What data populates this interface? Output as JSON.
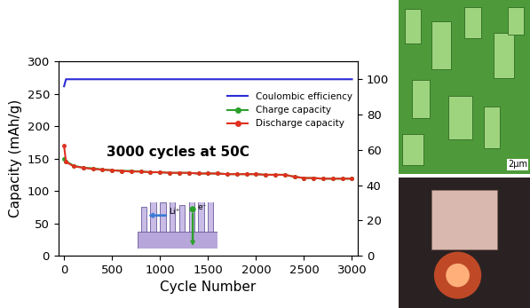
{
  "chart_data": {
    "type": "line",
    "x_label": "Cycle Number",
    "y_label": "Capacity (mAh/g)",
    "x": [
      0,
      20,
      100,
      200,
      300,
      400,
      500,
      600,
      700,
      800,
      900,
      1000,
      1100,
      1200,
      1300,
      1400,
      1500,
      1600,
      1700,
      1800,
      1900,
      2000,
      2100,
      2200,
      2300,
      2400,
      2500,
      2600,
      2700,
      2800,
      2900,
      3000
    ],
    "series": [
      {
        "name": "Coulombic efficiency",
        "color": "#2b2bd6",
        "axis": "y2",
        "marker": "none",
        "values": [
          96,
          100,
          100,
          100,
          100,
          100,
          100,
          100,
          100,
          100,
          100,
          100,
          100,
          100,
          100,
          100,
          100,
          100,
          100,
          100,
          100,
          100,
          100,
          100,
          100,
          100,
          100,
          100,
          100,
          100,
          100,
          100
        ]
      },
      {
        "name": "Charge capacity",
        "color": "#2ca02c",
        "marker": "o",
        "values": [
          150,
          146,
          139,
          136,
          135,
          133,
          132,
          131,
          131,
          130,
          129,
          129,
          128,
          128,
          128,
          127,
          127,
          127,
          126,
          126,
          126,
          126,
          125,
          125,
          125,
          122,
          120,
          120,
          119,
          119,
          119,
          119
        ]
      },
      {
        "name": "Discharge capacity",
        "color": "#e03020",
        "marker": "o",
        "values": [
          170,
          145,
          138,
          136,
          134,
          133,
          132,
          131,
          130,
          130,
          129,
          129,
          128,
          128,
          128,
          127,
          127,
          127,
          126,
          126,
          126,
          126,
          125,
          125,
          125,
          122,
          120,
          120,
          119,
          119,
          119,
          119
        ]
      }
    ],
    "xlim": [
      -60,
      3060
    ],
    "xticks": [
      0,
      500,
      1000,
      1500,
      2000,
      2500,
      3000
    ],
    "ylim": [
      0,
      300
    ],
    "yticks": [
      0,
      50,
      100,
      150,
      200,
      250,
      300
    ],
    "y2lim": [
      0,
      110
    ],
    "y2ticks": [
      0,
      20,
      40,
      60,
      80,
      100
    ],
    "legend": "upper right",
    "annotations": {
      "main": "3000 cycles at 50C",
      "schematic": [
        "Li⁺",
        "e⁻"
      ],
      "scale_bar": "2μm"
    }
  }
}
